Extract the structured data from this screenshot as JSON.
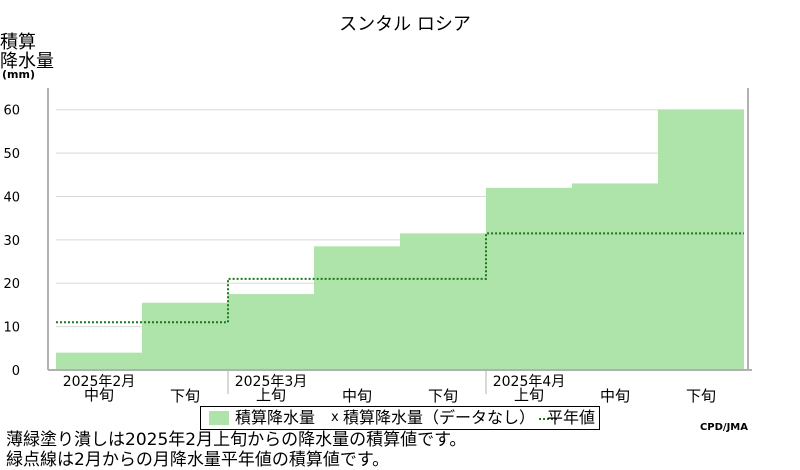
{
  "chart_data": {
    "type": "bar",
    "title": "スンタル ロシア",
    "ylabel_lines": [
      "積算",
      "降水量",
      "(mm)"
    ],
    "ylim": [
      0,
      65
    ],
    "yticks": [
      0,
      10,
      20,
      30,
      40,
      50,
      60
    ],
    "grid": true,
    "categories": [
      "中旬",
      "下旬",
      "上旬",
      "中旬",
      "下旬",
      "上旬",
      "中旬",
      "下旬"
    ],
    "month_labels": [
      {
        "label": "2025年2月",
        "start_index": 0
      },
      {
        "label": "2025年3月",
        "start_index": 2
      },
      {
        "label": "2025年4月",
        "start_index": 5
      }
    ],
    "series": [
      {
        "name": "積算降水量",
        "style": "filled-step",
        "color": "#aee3aa",
        "values": [
          4,
          15.5,
          17.5,
          28.5,
          31.5,
          42,
          43,
          60
        ]
      },
      {
        "name": "平年値",
        "style": "dotted-step",
        "color": "#1a7a1a",
        "values": [
          11,
          11,
          21,
          21,
          21,
          31.5,
          31.5,
          31.5
        ]
      }
    ]
  },
  "legend": {
    "item1": "積算降水量",
    "marker": "x",
    "item2": "積算降水量（データなし）",
    "item3": "平年値"
  },
  "credit": "CPD/JMA",
  "notes": [
    "薄緑塗り潰しは2025年2月上旬からの降水量の積算値です。",
    "緑点線は2月からの月降水量平年値の積算値です。"
  ]
}
